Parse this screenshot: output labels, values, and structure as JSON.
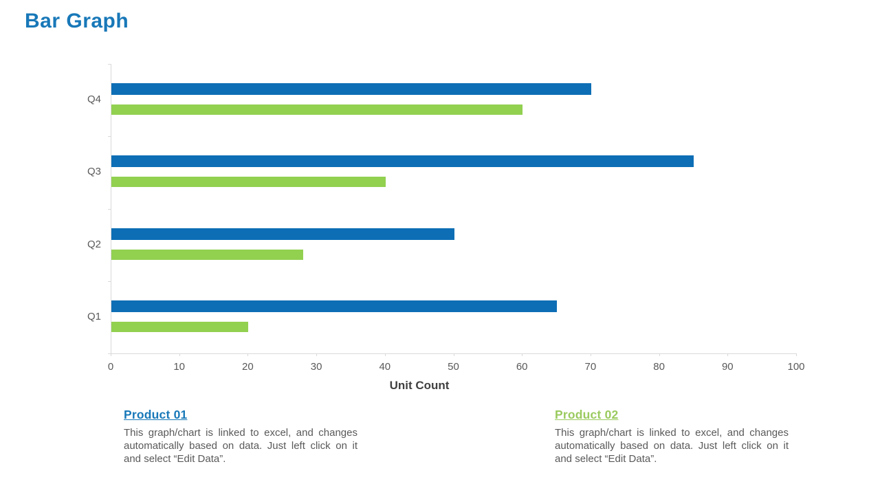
{
  "slide": {
    "title": "Bar Graph",
    "title_color": "#1878b8"
  },
  "chart_data": {
    "type": "bar",
    "orientation": "horizontal",
    "title": "",
    "xlabel": "Unit Count",
    "ylabel": "",
    "xlim": [
      0,
      100
    ],
    "xticks": [
      0,
      10,
      20,
      30,
      40,
      50,
      60,
      70,
      80,
      90,
      100
    ],
    "grid": false,
    "legend_position": "none",
    "categories": [
      "Q1",
      "Q2",
      "Q3",
      "Q4"
    ],
    "series": [
      {
        "name": "Product 01",
        "color": "#0d6eb5",
        "values": [
          65,
          50,
          85,
          70
        ]
      },
      {
        "name": "Product 02",
        "color": "#92d050",
        "values": [
          20,
          28,
          40,
          60
        ]
      }
    ]
  },
  "axis_colors": {
    "line": "#d9d9d9",
    "tick_label": "#595959",
    "category_label": "#595959",
    "axis_title": "#404040"
  },
  "notes": [
    {
      "heading": "Product 01",
      "heading_color": "#1878b8",
      "body": "This graph/chart is linked to excel, and changes automatically based on data. Just left click on it and select “Edit Data”."
    },
    {
      "heading": "Product 02",
      "heading_color": "#9aca5e",
      "body": "This graph/chart is linked to excel, and changes automatically based on data. Just left click on it and select “Edit Data”."
    }
  ]
}
